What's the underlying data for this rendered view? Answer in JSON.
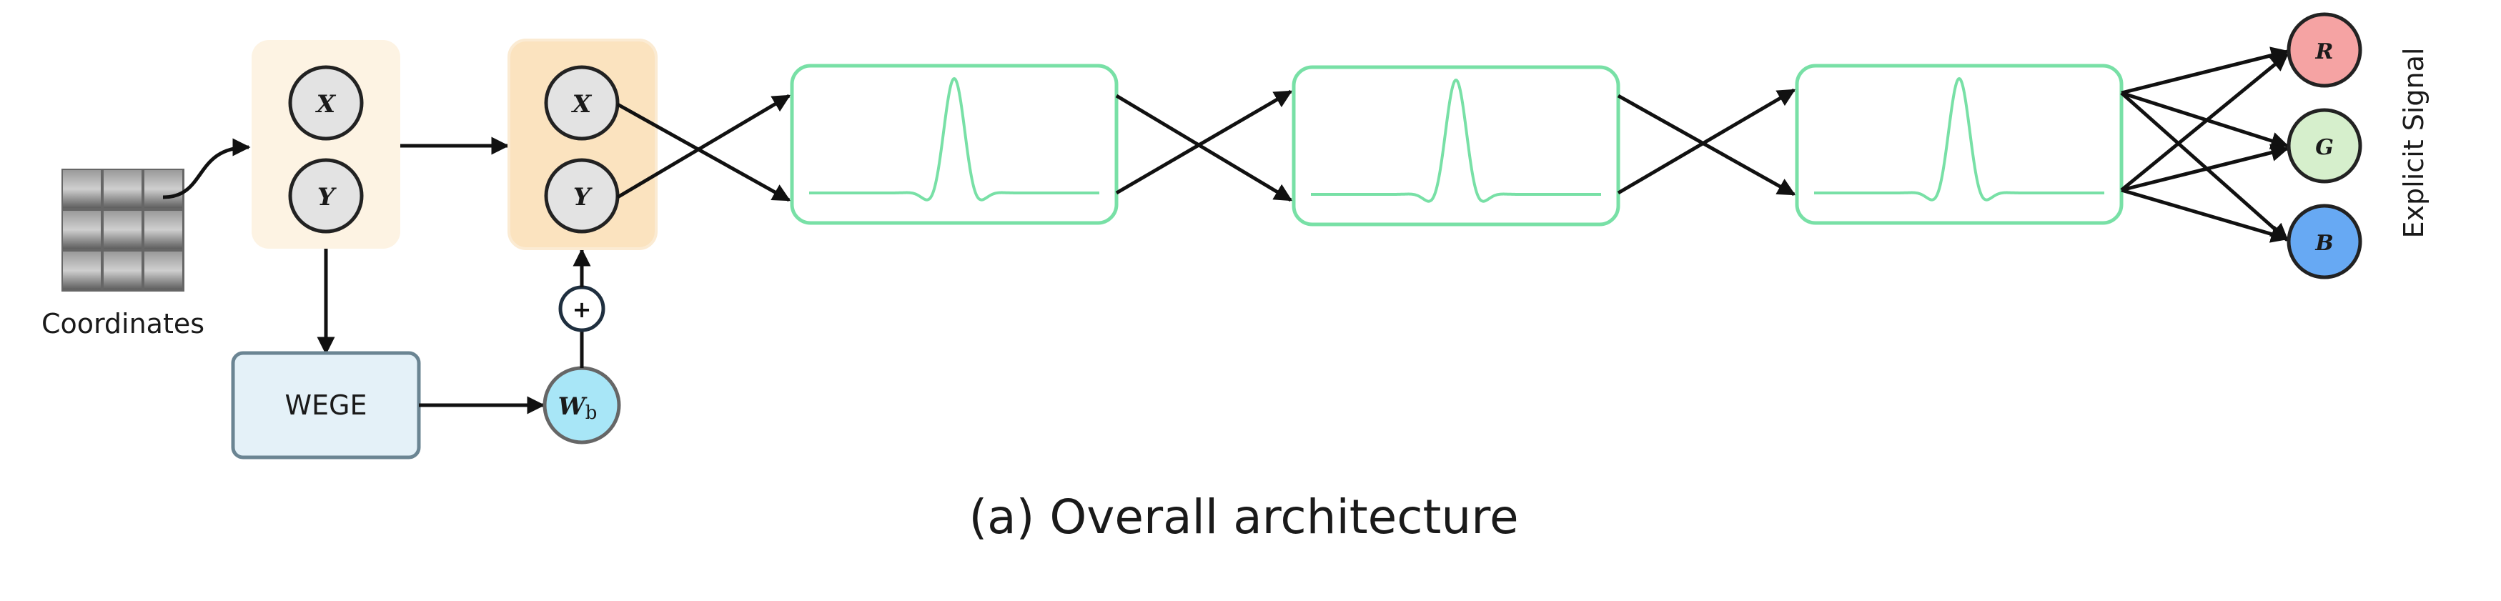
{
  "labels": {
    "coordinates": "Coordinates",
    "wege": "WEGE",
    "explicit_signal": "Explicit Signal",
    "caption": "(a) Overall architecture"
  },
  "input_nodes": [
    "X",
    "Y"
  ],
  "encoded_nodes": [
    "X",
    "Y"
  ],
  "bias": {
    "symbol": "W",
    "subscript": "b",
    "operator": "+"
  },
  "output_nodes": [
    "R",
    "G",
    "B"
  ],
  "colors": {
    "input_panel": "#fdf3e3",
    "encoded_panel": "#fbe3bf",
    "node_fill": "#e3e3e3",
    "wege_fill": "#e4f1f8",
    "wege_stroke": "#6b8593",
    "bias_fill": "#a8e6f7",
    "layer_stroke": "#78e0a6",
    "red": "#f5a3a3",
    "green": "#d6efcc",
    "blue": "#67a9f3"
  }
}
